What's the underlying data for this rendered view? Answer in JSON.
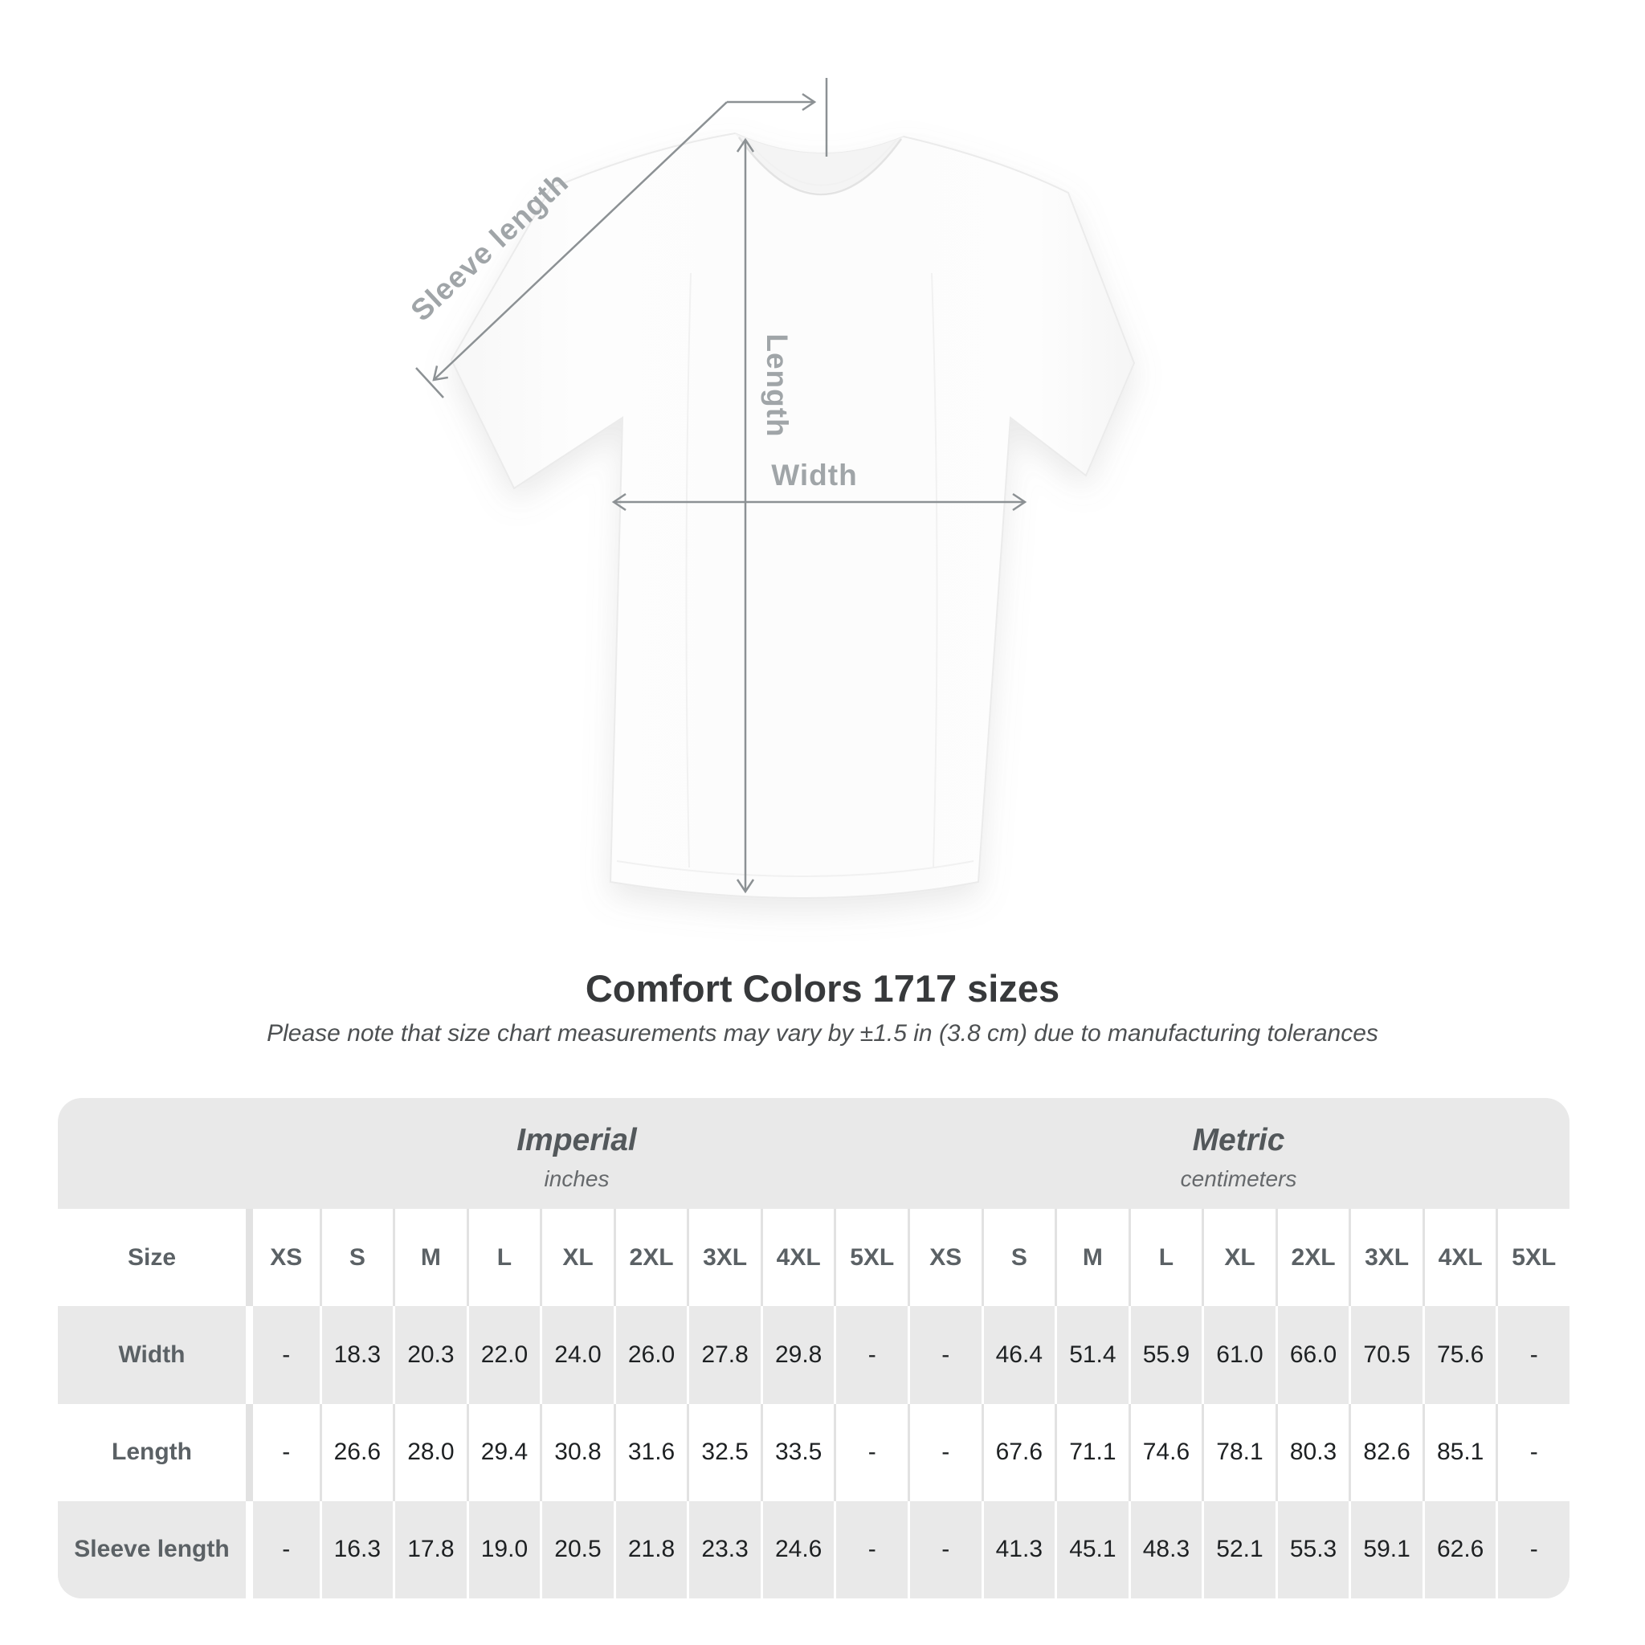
{
  "diagram": {
    "sleeve_label": "Sleeve length",
    "length_label": "Length",
    "width_label": "Width",
    "annotation_color": "#8c9194",
    "label_color": "#a0a5a8"
  },
  "title": "Comfort Colors 1717 sizes",
  "subtitle": "Please note that size chart measurements may vary by ±1.5 in (3.8 cm) due to manufacturing tolerances",
  "table": {
    "panel_color": "#e9e9e9",
    "size_header": "Size",
    "groups": [
      {
        "label": "Imperial",
        "unit": "inches"
      },
      {
        "label": "Metric",
        "unit": "centimeters"
      }
    ],
    "sizes": [
      "XS",
      "S",
      "M",
      "L",
      "XL",
      "2XL",
      "3XL",
      "4XL",
      "5XL"
    ],
    "rows": [
      {
        "label": "Width",
        "imperial": [
          "-",
          "18.3",
          "20.3",
          "22.0",
          "24.0",
          "26.0",
          "27.8",
          "29.8",
          "-"
        ],
        "metric": [
          "-",
          "46.4",
          "51.4",
          "55.9",
          "61.0",
          "66.0",
          "70.5",
          "75.6",
          "-"
        ]
      },
      {
        "label": "Length",
        "imperial": [
          "-",
          "26.6",
          "28.0",
          "29.4",
          "30.8",
          "31.6",
          "32.5",
          "33.5",
          "-"
        ],
        "metric": [
          "-",
          "67.6",
          "71.1",
          "74.6",
          "78.1",
          "80.3",
          "82.6",
          "85.1",
          "-"
        ]
      },
      {
        "label": "Sleeve length",
        "imperial": [
          "-",
          "16.3",
          "17.8",
          "19.0",
          "20.5",
          "21.8",
          "23.3",
          "24.6",
          "-"
        ],
        "metric": [
          "-",
          "41.3",
          "45.1",
          "48.3",
          "52.1",
          "55.3",
          "59.1",
          "62.6",
          "-"
        ]
      }
    ]
  },
  "chart_data": {
    "type": "table",
    "title": "Comfort Colors 1717 sizes",
    "note": "Please note that size chart measurements may vary by ±1.5 in (3.8 cm) due to manufacturing tolerances",
    "column_groups": [
      "Imperial (inches)",
      "Metric (centimeters)"
    ],
    "columns": [
      "Size",
      "XS",
      "S",
      "M",
      "L",
      "XL",
      "2XL",
      "3XL",
      "4XL",
      "5XL",
      "XS",
      "S",
      "M",
      "L",
      "XL",
      "2XL",
      "3XL",
      "4XL",
      "5XL"
    ],
    "rows": [
      [
        "Width",
        "-",
        "18.3",
        "20.3",
        "22.0",
        "24.0",
        "26.0",
        "27.8",
        "29.8",
        "-",
        "-",
        "46.4",
        "51.4",
        "55.9",
        "61.0",
        "66.0",
        "70.5",
        "75.6",
        "-"
      ],
      [
        "Length",
        "-",
        "26.6",
        "28.0",
        "29.4",
        "30.8",
        "31.6",
        "32.5",
        "33.5",
        "-",
        "-",
        "67.6",
        "71.1",
        "74.6",
        "78.1",
        "80.3",
        "82.6",
        "85.1",
        "-"
      ],
      [
        "Sleeve length",
        "-",
        "16.3",
        "17.8",
        "19.0",
        "20.5",
        "21.8",
        "23.3",
        "24.6",
        "-",
        "-",
        "41.3",
        "45.1",
        "48.3",
        "52.1",
        "55.3",
        "59.1",
        "62.6",
        "-"
      ]
    ]
  }
}
